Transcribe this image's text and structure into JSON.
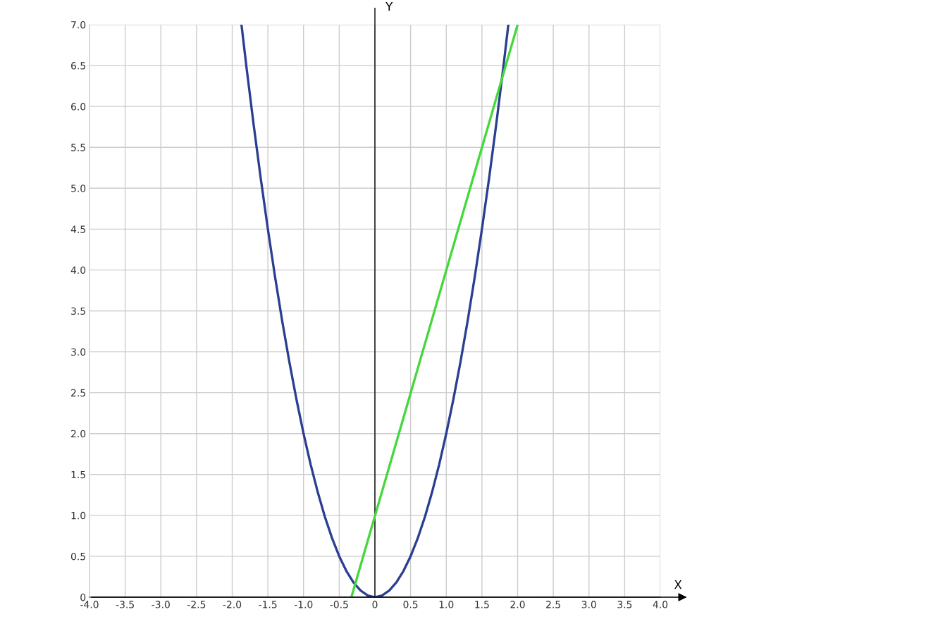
{
  "chart_data": {
    "type": "line",
    "xlabel": "X",
    "ylabel": "Y",
    "series": [
      {
        "color": "#2b3f91",
        "x": [
          -1.87,
          -1.8,
          -1.7,
          -1.6,
          -1.5,
          -1.4,
          -1.3,
          -1.2,
          -1.1,
          -1.0,
          -0.9,
          -0.8,
          -0.7,
          -0.6,
          -0.5,
          -0.4,
          -0.3,
          -0.2,
          -0.1,
          0,
          0.1,
          0.2,
          0.3,
          0.4,
          0.5,
          0.6,
          0.7,
          0.8,
          0.9,
          1.0,
          1.1,
          1.2,
          1.3,
          1.4,
          1.5,
          1.6,
          1.7,
          1.8,
          1.87
        ],
        "values": [
          7.0,
          6.48,
          5.78,
          5.12,
          4.5,
          3.92,
          3.38,
          2.88,
          2.42,
          2.0,
          1.62,
          1.28,
          0.98,
          0.72,
          0.5,
          0.32,
          0.18,
          0.08,
          0.02,
          0,
          0.02,
          0.08,
          0.18,
          0.32,
          0.5,
          0.72,
          0.98,
          1.28,
          1.62,
          2.0,
          2.42,
          2.88,
          3.38,
          3.92,
          4.5,
          5.12,
          5.78,
          6.48,
          7.0
        ]
      },
      {
        "color": "#44d83c",
        "x": [
          -0.33,
          2.0
        ],
        "values": [
          0,
          7.0
        ]
      }
    ],
    "xlim": [
      -4,
      4
    ],
    "ylim": [
      0,
      7
    ],
    "xticks": [
      {
        "value": -4,
        "label": "-4.0"
      },
      {
        "value": -3.5,
        "label": "-3.5"
      },
      {
        "value": -3,
        "label": "-3.0"
      },
      {
        "value": -2.5,
        "label": "-2.5"
      },
      {
        "value": -2,
        "label": "-2.0"
      },
      {
        "value": -1.5,
        "label": "-1.5"
      },
      {
        "value": -1,
        "label": "-1.0"
      },
      {
        "value": -0.5,
        "label": "-0.5"
      },
      0,
      {
        "value": 0.5,
        "label": "0.5"
      },
      {
        "value": 1,
        "label": "1.0"
      },
      {
        "value": 1.5,
        "label": "1.5"
      },
      {
        "value": 2,
        "label": "2.0"
      },
      {
        "value": 2.5,
        "label": "2.5"
      },
      {
        "value": 3,
        "label": "3.0"
      },
      {
        "value": 3.5,
        "label": "3.5"
      },
      {
        "value": 4,
        "label": "4.0"
      }
    ],
    "yticks": [
      0,
      {
        "value": 0.5,
        "label": "0.5"
      },
      {
        "value": 1,
        "label": "1.0"
      },
      {
        "value": 1.5,
        "label": "1.5"
      },
      {
        "value": 2,
        "label": "2.0"
      },
      {
        "value": 2.5,
        "label": "2.5"
      },
      {
        "value": 3,
        "label": "3.0"
      },
      {
        "value": 3.5,
        "label": "3.5"
      },
      {
        "value": 4,
        "label": "4.0"
      },
      {
        "value": 4.5,
        "label": "4.5"
      },
      {
        "value": 5,
        "label": "5.0"
      },
      {
        "value": 5.5,
        "label": "5.5"
      },
      {
        "value": 6,
        "label": "6.0"
      },
      {
        "value": 6.5,
        "label": "6.5"
      },
      {
        "value": 7,
        "label": "7.0"
      }
    ],
    "grid": true,
    "marker": "none",
    "line_style": "solid"
  }
}
